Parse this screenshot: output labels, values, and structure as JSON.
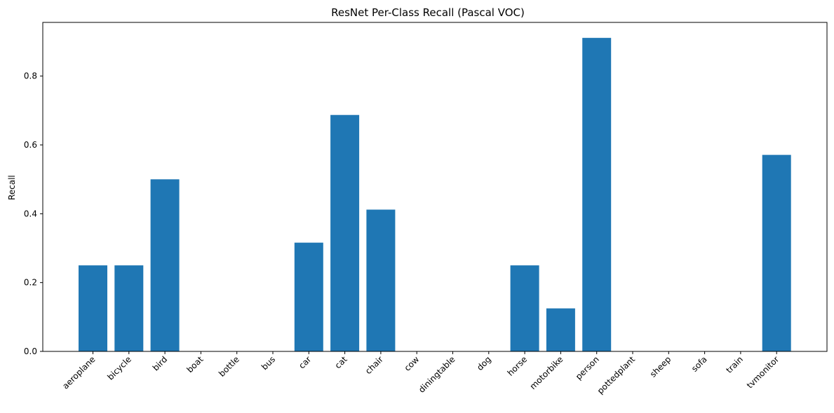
{
  "chart_data": {
    "type": "bar",
    "title": "ResNet Per-Class Recall (Pascal VOC)",
    "xlabel": "",
    "ylabel": "Recall",
    "categories": [
      "aeroplane",
      "bicycle",
      "bird",
      "boat",
      "bottle",
      "bus",
      "car",
      "cat",
      "chair",
      "cow",
      "diningtable",
      "dog",
      "horse",
      "motorbike",
      "person",
      "pottedplant",
      "sheep",
      "sofa",
      "train",
      "tvmonitor"
    ],
    "values": [
      0.25,
      0.25,
      0.5,
      0.0,
      0.0,
      0.0,
      0.316,
      0.687,
      0.412,
      0.0,
      0.0,
      0.0,
      0.25,
      0.125,
      0.911,
      0.0,
      0.0,
      0.0,
      0.0,
      0.571
    ],
    "ylim": [
      0,
      0.956
    ],
    "yticks": [
      0.0,
      0.2,
      0.4,
      0.6,
      0.8
    ],
    "ytick_labels": [
      "0.0",
      "0.2",
      "0.4",
      "0.6",
      "0.8"
    ],
    "bar_color": "#1f77b4",
    "grid": false,
    "legend": false
  }
}
